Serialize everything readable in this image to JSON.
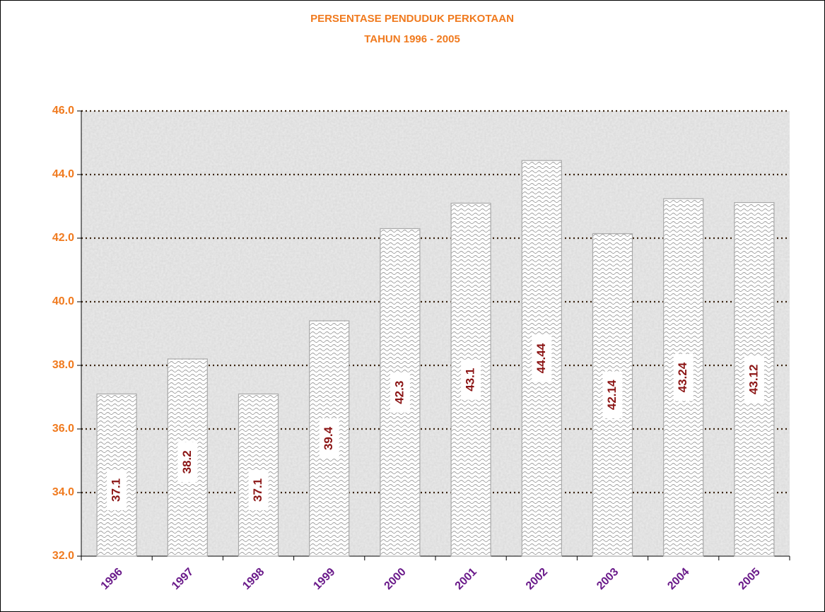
{
  "chart_data": {
    "type": "bar",
    "title": "PERSENTASE PENDUDUK PERKOTAAN",
    "subtitle": "TAHUN 1996 - 2005",
    "categories": [
      "1996",
      "1997",
      "1998",
      "1999",
      "2000",
      "2001",
      "2002",
      "2003",
      "2004",
      "2005"
    ],
    "values": [
      37.1,
      38.2,
      37.1,
      39.4,
      42.3,
      43.1,
      44.44,
      42.14,
      43.24,
      43.12
    ],
    "color": "#ffffff",
    "ylim": [
      32,
      46
    ],
    "yticks": [
      {
        "value": 32,
        "label": "32.0"
      },
      {
        "value": 34,
        "label": "34.0"
      },
      {
        "value": 36,
        "label": "36.0"
      },
      {
        "value": 38,
        "label": "38.0"
      },
      {
        "value": 40,
        "label": "40.0"
      },
      {
        "value": 42,
        "label": "42.0"
      },
      {
        "value": 44,
        "label": "44.0"
      },
      {
        "value": 46,
        "label": "46.0"
      }
    ],
    "grid": true
  }
}
